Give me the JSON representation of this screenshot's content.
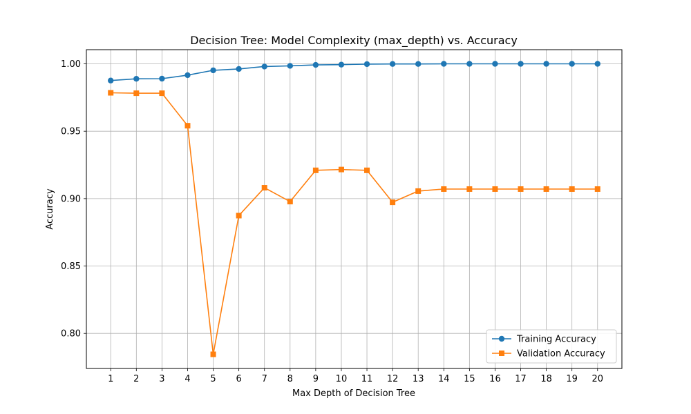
{
  "chart_data": {
    "type": "line",
    "title": "Decision Tree: Model Complexity (max_depth) vs. Accuracy",
    "xlabel": "Max Depth of Decision Tree",
    "ylabel": "Accuracy",
    "x": [
      1,
      2,
      3,
      4,
      5,
      6,
      7,
      8,
      9,
      10,
      11,
      12,
      13,
      14,
      15,
      16,
      17,
      18,
      19,
      20
    ],
    "xticks": [
      "1",
      "2",
      "3",
      "4",
      "5",
      "6",
      "7",
      "8",
      "9",
      "10",
      "11",
      "12",
      "13",
      "14",
      "15",
      "16",
      "17",
      "18",
      "19",
      "20"
    ],
    "xlim": [
      0.05,
      20.95
    ],
    "ylim": [
      0.774,
      1.0105
    ],
    "yticks": [
      "0.80",
      "0.85",
      "0.90",
      "0.95",
      "1.00"
    ],
    "ytick_values": [
      0.8,
      0.85,
      0.9,
      0.95,
      1.0
    ],
    "grid": true,
    "legend_position": "lower-right",
    "series": [
      {
        "name": "Training Accuracy",
        "color": "#1f77b4",
        "marker": "circle",
        "values": [
          0.9876,
          0.9889,
          0.989,
          0.9916,
          0.9952,
          0.9962,
          0.998,
          0.9985,
          0.9992,
          0.9994,
          0.9998,
          0.9999,
          0.9999,
          1.0,
          1.0,
          1.0,
          1.0,
          1.0,
          1.0,
          1.0
        ]
      },
      {
        "name": "Validation Accuracy",
        "color": "#ff7f0e",
        "marker": "square",
        "values": [
          0.9785,
          0.9782,
          0.9782,
          0.9541,
          0.7845,
          0.8874,
          0.9081,
          0.8978,
          0.921,
          0.9216,
          0.921,
          0.8973,
          0.9056,
          0.9071,
          0.9071,
          0.9071,
          0.9071,
          0.9071,
          0.9071,
          0.9071
        ]
      }
    ]
  }
}
